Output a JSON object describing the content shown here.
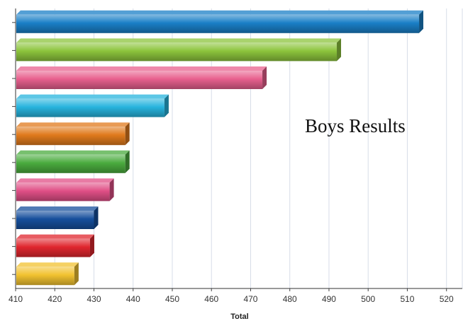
{
  "chart_data": {
    "type": "bar",
    "orientation": "horizontal",
    "title": "",
    "xlabel": "Total",
    "ylabel": "",
    "xlim": [
      410,
      520
    ],
    "xticks": [
      410,
      420,
      430,
      440,
      450,
      460,
      470,
      480,
      490,
      500,
      510,
      520
    ],
    "grid": "vertical",
    "annotation": "Boys Results",
    "bars": [
      {
        "value": 513,
        "color": "#1a7fc7"
      },
      {
        "value": 492,
        "color": "#8cc43c"
      },
      {
        "value": 473,
        "color": "#e8608e"
      },
      {
        "value": 448,
        "color": "#27b4de"
      },
      {
        "value": 438,
        "color": "#e07a1c"
      },
      {
        "value": 438,
        "color": "#4aab3e"
      },
      {
        "value": 434,
        "color": "#e04f86"
      },
      {
        "value": 430,
        "color": "#164f9c"
      },
      {
        "value": 429,
        "color": "#e0262e"
      },
      {
        "value": 425,
        "color": "#f2c230"
      }
    ]
  }
}
